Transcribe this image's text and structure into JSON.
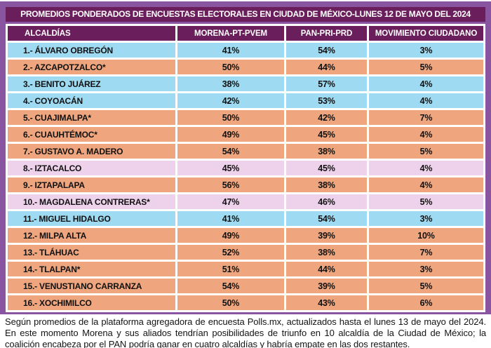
{
  "title": "PROMEDIOS PONDERADOS DE ENCUESTAS ELECTORALES EN CIUDAD DE MÉXICO-LUNES 12 DE MAYO DEL 2024",
  "columns": [
    "ALCALDÍAS",
    "MORENA-PT-PVEM",
    "PAN-PRI-PRD",
    "MOVIMIENTO CIUDADANO"
  ],
  "rows": [
    {
      "name": "1.- ÁLVARO OBREGÓN",
      "morena": "41%",
      "pan": "54%",
      "mc": "3%",
      "result": "pan"
    },
    {
      "name": "2.- AZCAPOTZALCO*",
      "morena": "50%",
      "pan": "44%",
      "mc": "5%",
      "result": "morena"
    },
    {
      "name": "3.- BENITO JUÁREZ",
      "morena": "38%",
      "pan": "57%",
      "mc": "4%",
      "result": "pan"
    },
    {
      "name": "4.- COYOACÁN",
      "morena": "42%",
      "pan": "53%",
      "mc": "4%",
      "result": "pan"
    },
    {
      "name": "5.- CUAJIMALPA*",
      "morena": "50%",
      "pan": "42%",
      "mc": "7%",
      "result": "morena"
    },
    {
      "name": "6.- CUAUHTÉMOC*",
      "morena": "49%",
      "pan": "45%",
      "mc": "4%",
      "result": "morena"
    },
    {
      "name": "7.- GUSTAVO A. MADERO",
      "morena": "54%",
      "pan": "38%",
      "mc": "5%",
      "result": "morena"
    },
    {
      "name": "8.- IZTACALCO",
      "morena": "45%",
      "pan": "45%",
      "mc": "4%",
      "result": "empate"
    },
    {
      "name": "9.- IZTAPALAPA",
      "morena": "56%",
      "pan": "38%",
      "mc": "4%",
      "result": "morena"
    },
    {
      "name": "10.- MAGDALENA CONTRERAS*",
      "morena": "47%",
      "pan": "46%",
      "mc": "5%",
      "result": "empate"
    },
    {
      "name": "11.- MIGUEL HIDALGO",
      "morena": "41%",
      "pan": "54%",
      "mc": "3%",
      "result": "pan"
    },
    {
      "name": "12.- MILPA ALTA",
      "morena": "49%",
      "pan": "39%",
      "mc": "10%",
      "result": "morena"
    },
    {
      "name": "13.- TLÁHUAC",
      "morena": "52%",
      "pan": "38%",
      "mc": "7%",
      "result": "morena"
    },
    {
      "name": "14.- TLALPAN*",
      "morena": "51%",
      "pan": "44%",
      "mc": "3%",
      "result": "morena"
    },
    {
      "name": "15.- VENUSTIANO CARRANZA",
      "morena": "54%",
      "pan": "39%",
      "mc": "5%",
      "result": "morena"
    },
    {
      "name": "16.- XOCHIMILCO",
      "morena": "50%",
      "pan": "43%",
      "mc": "6%",
      "result": "morena"
    }
  ],
  "footer": {
    "text": "Según promedios de la plataforma agregadora de encuesta Polls.mx, actualizados hasta el lunes 13 de mayo del 2024. En este momento Morena y sus aliados tendrían posibilidades de triunfo en 10 alcaldía de la Ciudad de México; la coalición encabeza por el PAN podría ganar en cuatro alcaldías y habría empate en las dos restantes."
  },
  "colors": {
    "frame_purple": "#8A55A0",
    "header_dark_purple": "#6B1E5C",
    "morena_lead_row": "#EFA67E",
    "pan_lead_row": "#9EDAF2",
    "empate_row": "#EED2EC",
    "header_text": "#FFFFFF",
    "cell_text": "#101010"
  },
  "chart_data": {
    "type": "table",
    "title": "PROMEDIOS PONDERADOS DE ENCUESTAS ELECTORALES EN CIUDAD DE MÉXICO-LUNES 12 DE MAYO DEL 2024",
    "units": "%",
    "categories": [
      "ÁLVARO OBREGÓN",
      "AZCAPOTZALCO*",
      "BENITO JUÁREZ",
      "COYOACÁN",
      "CUAJIMALPA*",
      "CUAUHTÉMOC*",
      "GUSTAVO A. MADERO",
      "IZTACALCO",
      "IZTAPALAPA",
      "MAGDALENA CONTRERAS*",
      "MIGUEL HIDALGO",
      "MILPA ALTA",
      "TLÁHUAC",
      "TLALPAN*",
      "VENUSTIANO CARRANZA",
      "XOCHIMILCO"
    ],
    "series": [
      {
        "name": "MORENA-PT-PVEM",
        "values": [
          41,
          50,
          38,
          42,
          50,
          49,
          54,
          45,
          56,
          47,
          41,
          49,
          52,
          51,
          54,
          50
        ]
      },
      {
        "name": "PAN-PRI-PRD",
        "values": [
          54,
          44,
          57,
          53,
          42,
          45,
          38,
          45,
          38,
          46,
          54,
          39,
          38,
          44,
          39,
          43
        ]
      },
      {
        "name": "MOVIMIENTO CIUDADANO",
        "values": [
          3,
          5,
          4,
          4,
          7,
          4,
          5,
          4,
          4,
          5,
          3,
          10,
          7,
          3,
          5,
          6
        ]
      }
    ],
    "row_result_coding": {
      "morena_lead": 10,
      "pan_lead": 4,
      "empate": 2
    },
    "row_results": [
      "pan",
      "morena",
      "pan",
      "pan",
      "morena",
      "morena",
      "morena",
      "empate",
      "morena",
      "empate",
      "pan",
      "morena",
      "morena",
      "morena",
      "morena",
      "morena"
    ]
  }
}
